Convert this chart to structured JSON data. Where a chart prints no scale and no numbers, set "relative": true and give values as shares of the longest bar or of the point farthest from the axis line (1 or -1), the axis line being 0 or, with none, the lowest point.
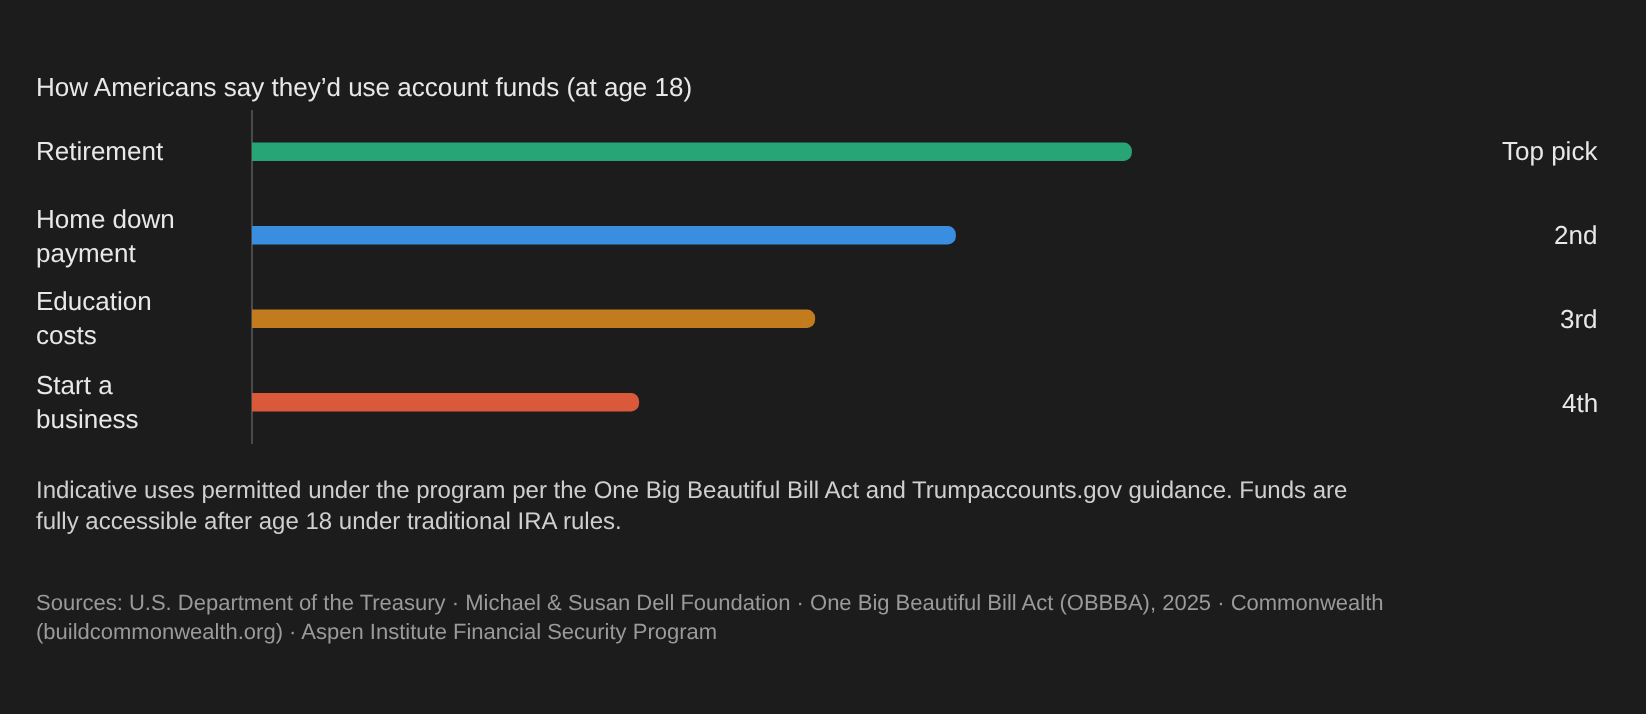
{
  "chart_data": {
    "type": "bar",
    "orientation": "horizontal",
    "relative": true,
    "title": "How Americans say they’d use account funds (at age 18)",
    "categories": [
      "Retirement",
      "Home down payment",
      "Education costs",
      "Start a business"
    ],
    "values": [
      1,
      0.8,
      0.64,
      0.44
    ],
    "colors": [
      "#27a576",
      "#3a8ee0",
      "#c27c1e",
      "#d9593a"
    ],
    "annotations": [
      "Top pick",
      "2nd",
      "3rd",
      "4th",
      "Indicative uses permitted under the program per the One Big Beautiful Bill Act and Trumpaccounts.gov guidance. Funds are fully accessible after age 18 under traditional IRA rules.",
      "Sources: U.S. Department of the Treasury · Michael & Susan Dell Foundation · One Big Beautiful Bill Act (OBBBA), 2025 · Commonwealth (buildcommonwealth.org) · Aspen Institute Financial Security Program"
    ]
  }
}
